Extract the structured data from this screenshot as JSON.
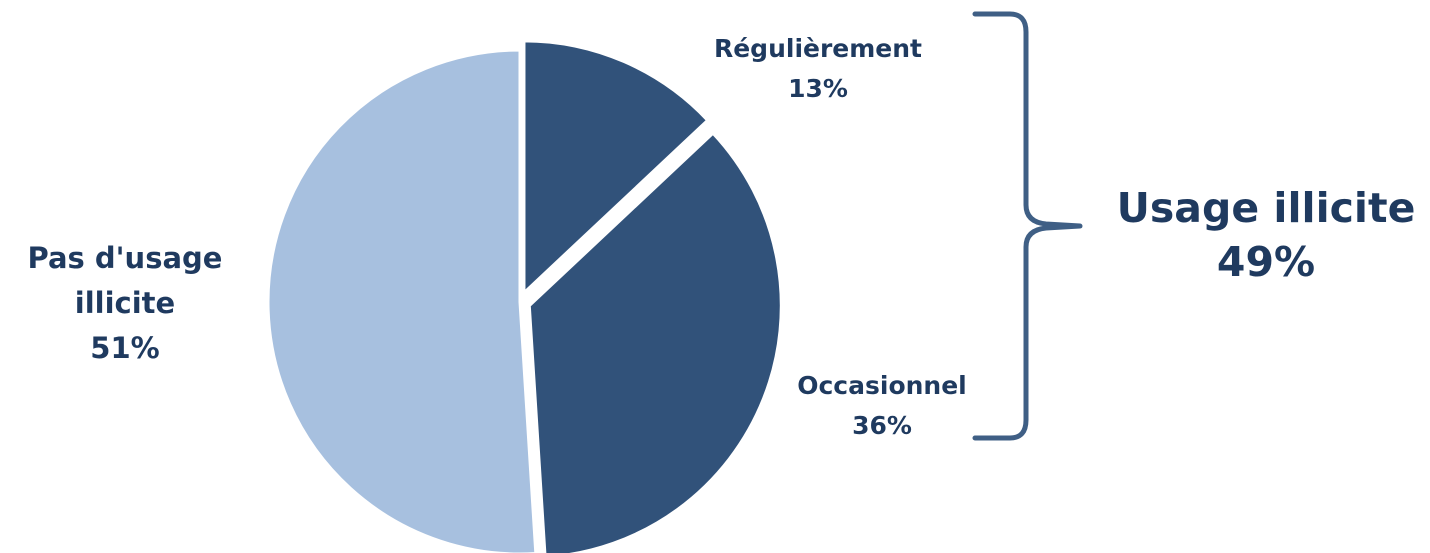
{
  "chart_data": {
    "type": "pie",
    "slices": [
      {
        "label": "Régulièrement",
        "value": 13,
        "value_label": "13%",
        "color": "#31527a",
        "exploded": true
      },
      {
        "label": "Occasionnel",
        "value": 36,
        "value_label": "36%",
        "color": "#31527a",
        "exploded": true
      },
      {
        "label_lines": [
          "Pas d'usage",
          "illicite"
        ],
        "value": 51,
        "value_label": "51%",
        "color": "#a7c0df",
        "exploded": false
      }
    ],
    "group": {
      "label": "Usage illicite",
      "value_label": "49%",
      "members": [
        "Régulièrement",
        "Occasionnel"
      ]
    },
    "text_color": "#1f3a5f",
    "bracket_color": "#3f5f85"
  }
}
